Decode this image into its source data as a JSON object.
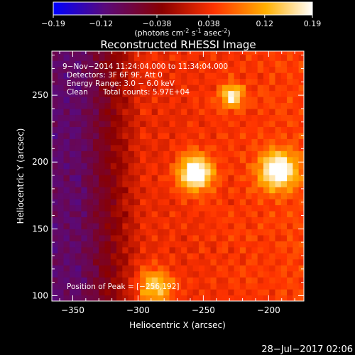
{
  "colorbar": {
    "ticks": [
      "-0.19",
      "-0.12",
      "-0.038",
      "0.038",
      "0.12",
      "0.19"
    ],
    "tick_values": [
      -0.19,
      -0.12,
      -0.038,
      0.038,
      0.12,
      0.19
    ],
    "range": [
      -0.19,
      0.19
    ],
    "unit_label": "(photons cm",
    "unit_exp1": "-2",
    "unit_mid": " s",
    "unit_exp2": "-1",
    "unit_mid2": " asec",
    "unit_exp3": "-2",
    "unit_end": ")",
    "colors": [
      "#0000ff",
      "#5a0a7a",
      "#8a0000",
      "#ff3300",
      "#ffb000",
      "#ffffff"
    ]
  },
  "chart_data": {
    "type": "heatmap",
    "title": "Reconstructed RHESSI Image",
    "xlabel": "Heliocentric X (arcsec)",
    "ylabel": "Heliocentric Y (arcsec)",
    "xlim": [
      -366,
      -173
    ],
    "ylim": [
      96,
      283
    ],
    "x_ticks": [
      -350,
      -300,
      -250,
      -200
    ],
    "y_ticks": [
      100,
      150,
      200,
      250
    ],
    "x_tick_labels": [
      "−350",
      "−300",
      "−250",
      "−200"
    ],
    "y_tick_labels": [
      "100",
      "150",
      "200",
      "250"
    ],
    "sources": [
      {
        "x": -256,
        "y": 192,
        "peak": 0.19,
        "sigma": 9
      },
      {
        "x": -193,
        "y": 194,
        "peak": 0.17,
        "sigma": 10
      },
      {
        "x": -228,
        "y": 250,
        "peak": 0.14,
        "sigma": 6
      },
      {
        "x": -287,
        "y": 107,
        "peak": 0.12,
        "sigma": 9
      }
    ],
    "annotations": {
      "time_range": "9−Nov−2014 11:24:04.000 to 11:34:04.000",
      "detectors": "Detectors: 3F 6F 9F, Att 0",
      "energy": "Energy Range: 3.0 − 6.0 keV",
      "method": "Clean",
      "counts": "Total counts: 5.97E+04",
      "peak": "Position of Peak = [−256,192]"
    }
  },
  "footer": {
    "date": "28−Jul−2017 02:06"
  }
}
